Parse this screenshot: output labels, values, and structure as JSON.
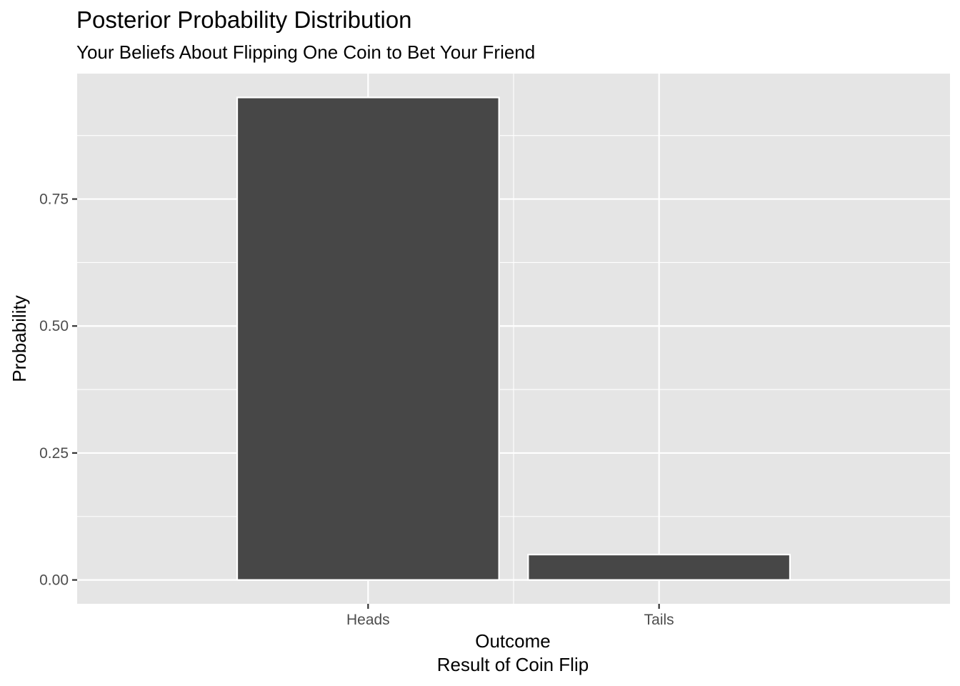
{
  "chart_data": {
    "type": "bar",
    "title": "Posterior Probability Distribution",
    "subtitle": "Your Beliefs About Flipping One Coin to Bet Your Friend",
    "xlabel": "Outcome",
    "xlabel_sub": "Result of Coin Flip",
    "ylabel": "Probability",
    "categories": [
      "Heads",
      "Tails"
    ],
    "values": [
      0.95,
      0.05
    ],
    "ylim": [
      -0.047,
      0.997
    ],
    "y_ticks": [
      0.0,
      0.25,
      0.5,
      0.75
    ],
    "y_tick_labels": [
      "0.00",
      "0.25",
      "0.50",
      "0.75"
    ],
    "grid": true,
    "legend": "none",
    "colors": {
      "panel_background": "#e5e5e5",
      "grid_line": "#ffffff",
      "bar_fill": "#474747",
      "bar_outline": "#ffffff",
      "tick_text": "#4d4d4d",
      "tick_mark": "#333333"
    }
  }
}
